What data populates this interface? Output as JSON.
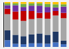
{
  "chart_data": {
    "type": "bar",
    "stacked": true,
    "categories": [
      null,
      null,
      null,
      null,
      null,
      null,
      null,
      null
    ],
    "series": [
      {
        "color": "#4472c4",
        "values": [
          15,
          7,
          6,
          8,
          8,
          7,
          10,
          6
        ]
      },
      {
        "color": "#1f3864",
        "values": [
          22,
          20,
          18,
          20,
          22,
          20,
          24,
          8
        ]
      },
      {
        "color": "#a6a6a6",
        "values": [
          36,
          34,
          34,
          34,
          34,
          36,
          36,
          50
        ]
      },
      {
        "color": "#c00000",
        "values": [
          12,
          18,
          22,
          18,
          12,
          14,
          10,
          12
        ]
      },
      {
        "color": "#7030a0",
        "values": [
          8,
          14,
          9,
          12,
          16,
          12,
          8,
          14
        ]
      },
      {
        "color": "#70ad47",
        "values": [
          4,
          4,
          7,
          5,
          5,
          7,
          7,
          5
        ]
      },
      {
        "color": "#ffc000",
        "values": [
          3,
          3,
          4,
          3,
          3,
          4,
          5,
          5
        ]
      }
    ],
    "ylim": [
      0,
      100
    ],
    "tick_labels": false
  }
}
